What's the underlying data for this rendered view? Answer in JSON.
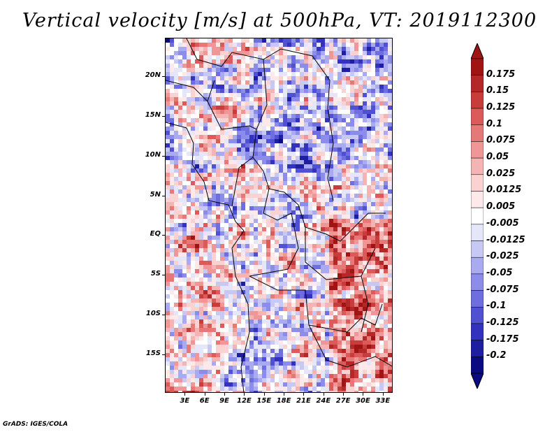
{
  "title": "Vertical velocity [m/s] at 500hPa, VT: 2019112300",
  "credit": "GrADS: IGES/COLA",
  "map": {
    "lat_labels": [
      "20N",
      "15N",
      "10N",
      "5N",
      "EQ",
      "5S",
      "10S",
      "15S"
    ],
    "lon_labels": [
      "3E",
      "6E",
      "9E",
      "12E",
      "15E",
      "18E",
      "21E",
      "24E",
      "27E",
      "30E",
      "33E"
    ],
    "lat_values": [
      20,
      15,
      10,
      5,
      0,
      -5,
      -10,
      -15
    ],
    "lon_values": [
      3,
      6,
      9,
      12,
      15,
      18,
      21,
      24,
      27,
      30,
      33
    ],
    "lon_range": [
      0,
      34.5
    ],
    "lat_range": [
      -19.8,
      24.8
    ]
  },
  "colorbar": {
    "labels": [
      "0.175",
      "0.15",
      "0.125",
      "0.1",
      "0.075",
      "0.05",
      "0.025",
      "0.0125",
      "0.005",
      "-0.005",
      "-0.0125",
      "-0.025",
      "-0.05",
      "-0.075",
      "-0.1",
      "-0.125",
      "-0.175",
      "-0.2"
    ],
    "colors": [
      "#a01414",
      "#b4282a",
      "#c83c3c",
      "#dc5a5a",
      "#e67878",
      "#f09696",
      "#f5b4b4",
      "#fad2d2",
      "#fde9e9",
      "#ffffff",
      "#e6e6fa",
      "#c8c8f5",
      "#aaaaf0",
      "#8c8ceb",
      "#6e6ee1",
      "#5050d2",
      "#3232be",
      "#1e1ea0",
      "#0a0a82"
    ],
    "top_arrow_color": "#a01414",
    "bottom_arrow_color": "#0a0a82"
  }
}
